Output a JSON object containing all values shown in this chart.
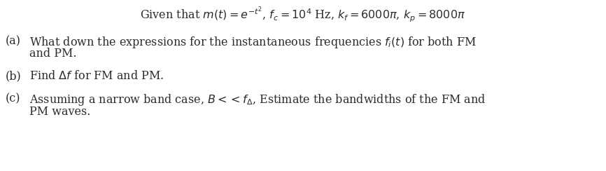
{
  "background_color": "#ffffff",
  "title_line": "Given that $m(t) = e^{-t^2}$, $f_c = 10^4$ Hz, $k_f = 6000\\pi$, $k_p = 8000\\pi$",
  "part_a_label": "(a)",
  "part_a_text1": "What down the expressions for the instantaneous frequencies $f_i(t)$ for both FM",
  "part_a_text2": "and PM.",
  "part_b_label": "(b)",
  "part_b_text": "Find $\\Delta f$ for FM and PM.",
  "part_c_label": "(c)",
  "part_c_text1": "Assuming a narrow band case, $B << f_{\\Delta}$, Estimate the bandwidths of the FM and",
  "part_c_text2": "PM waves.",
  "font_size": 11.5,
  "text_color": "#2b2b2b",
  "fig_width": 8.66,
  "fig_height": 2.44,
  "dpi": 100
}
